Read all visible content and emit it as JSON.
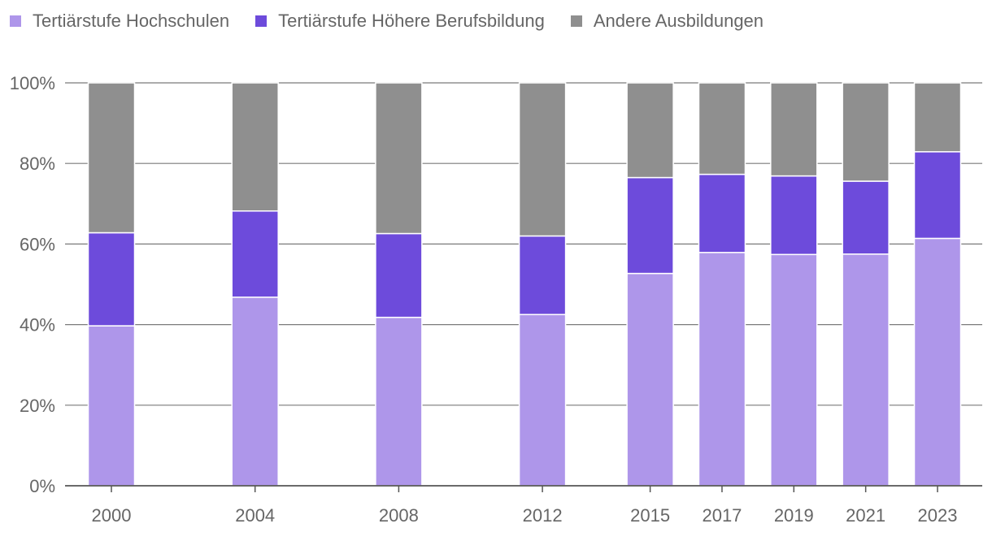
{
  "chart_data": {
    "type": "bar",
    "stacked": true,
    "title": "",
    "xlabel": "",
    "ylabel": "",
    "ylim": [
      0,
      100
    ],
    "yticks": [
      "0%",
      "20%",
      "40%",
      "60%",
      "80%",
      "100%"
    ],
    "categories": [
      2000,
      2004,
      2008,
      2012,
      2015,
      2017,
      2019,
      2021,
      2023
    ],
    "series": [
      {
        "name": "Tertiärstufe Hochschulen",
        "color": "#ae96ea",
        "values": [
          39.7,
          46.8,
          41.8,
          42.5,
          52.7,
          57.9,
          57.4,
          57.5,
          61.4
        ]
      },
      {
        "name": "Tertiärstufe Höhere Berufsbildung",
        "color": "#6d4bdb",
        "values": [
          23.1,
          21.4,
          20.8,
          19.5,
          23.8,
          19.4,
          19.5,
          18.1,
          21.5
        ]
      },
      {
        "name": "Andere Ausbildungen",
        "color": "#8f8f8f",
        "values": [
          37.2,
          31.8,
          37.4,
          38.0,
          23.5,
          22.7,
          23.1,
          24.4,
          17.1
        ]
      }
    ],
    "legend_position": "top-left",
    "grid": true
  }
}
